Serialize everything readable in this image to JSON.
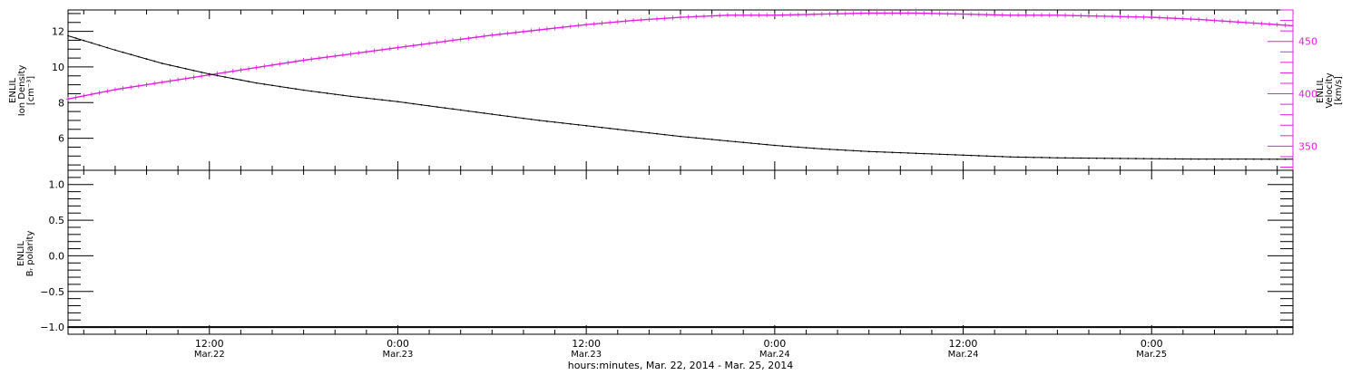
{
  "colors": {
    "density": "#000000",
    "velocity": "#e020e0",
    "polarity": "#000000",
    "axis": "#000000"
  },
  "axis_labels": {
    "density_y": [
      "ENLIL",
      "Ion Density",
      "[cm⁻³]"
    ],
    "velocity_y": [
      "ENLIL",
      "Velocity",
      "[km/s]"
    ],
    "polarity_y": [
      "ENLIL",
      "Bᵣ polarity"
    ],
    "x_title": "hours:minutes, Mar. 22, 2014 - Mar. 25, 2014"
  },
  "chart_data": [
    {
      "type": "line",
      "panel": "top",
      "x_unit": "hours since 0:00 Mar.22 2014",
      "xlim": [
        3,
        81
      ],
      "x_ticks": [
        {
          "x": 12,
          "time": "12:00",
          "date": "Mar.22"
        },
        {
          "x": 24,
          "time": "0:00",
          "date": "Mar.23"
        },
        {
          "x": 36,
          "time": "12:00",
          "date": "Mar.23"
        },
        {
          "x": 48,
          "time": "0:00",
          "date": "Mar.24"
        },
        {
          "x": 60,
          "time": "12:00",
          "date": "Mar.24"
        },
        {
          "x": 72,
          "time": "0:00",
          "date": "Mar.25"
        }
      ],
      "y_left": {
        "ylim": [
          4.2,
          13.2
        ],
        "ticks": [
          6,
          8,
          10,
          12
        ]
      },
      "y_right": {
        "ylim": [
          327,
          480
        ],
        "ticks": [
          350,
          400,
          450
        ]
      },
      "series": [
        {
          "axis": "left",
          "x": [
            3,
            6,
            9,
            12,
            15,
            18,
            21,
            24,
            27,
            30,
            33,
            36,
            39,
            42,
            45,
            48,
            51,
            54,
            57,
            60,
            63,
            66,
            69,
            72,
            75,
            78,
            81
          ],
          "y": [
            11.75,
            10.95,
            10.2,
            9.6,
            9.1,
            8.7,
            8.35,
            8.05,
            7.7,
            7.35,
            7.0,
            6.7,
            6.4,
            6.1,
            5.85,
            5.6,
            5.4,
            5.25,
            5.15,
            5.05,
            4.95,
            4.9,
            4.87,
            4.85,
            4.83,
            4.83,
            4.82
          ]
        },
        {
          "axis": "right",
          "x": [
            3,
            6,
            9,
            12,
            15,
            18,
            21,
            24,
            27,
            30,
            33,
            36,
            39,
            42,
            45,
            48,
            51,
            54,
            57,
            60,
            63,
            66,
            69,
            72,
            75,
            78,
            81
          ],
          "y": [
            395,
            404,
            411,
            418,
            425,
            432,
            438,
            444,
            450,
            456,
            461,
            466,
            470,
            473,
            475,
            475,
            476,
            477,
            477,
            476,
            475,
            475,
            474,
            473,
            471,
            468,
            465
          ]
        }
      ]
    },
    {
      "type": "line",
      "panel": "bottom",
      "x_unit": "hours since 0:00 Mar.22 2014",
      "xlim": [
        3,
        81
      ],
      "ylim": [
        -1.1,
        1.2
      ],
      "y_ticks": [
        -1.0,
        -0.5,
        0.0,
        0.5,
        1.0
      ],
      "y_tick_labels": [
        "−1.0",
        "−0.5",
        "0.0",
        "0.5",
        "1.0"
      ],
      "series": [
        {
          "x": [
            3,
            81
          ],
          "y": [
            -1.0,
            -1.0
          ]
        }
      ]
    }
  ]
}
